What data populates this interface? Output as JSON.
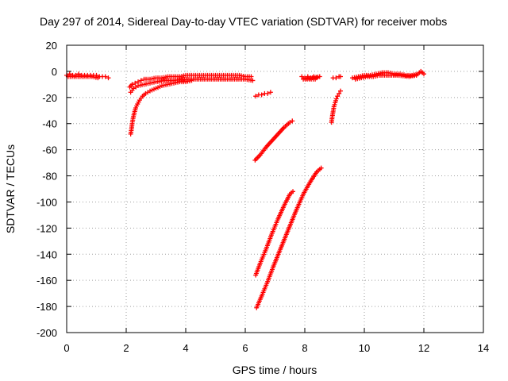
{
  "chart_data": {
    "type": "scatter",
    "title": "Day 297 of 2014, Sidereal Day-to-day VTEC variation (SDTVAR) for receiver mobs",
    "xlabel": "GPS time / hours",
    "ylabel": "SDTVAR / TECUs",
    "xlim": [
      0,
      14
    ],
    "ylim": [
      -200,
      20
    ],
    "xticks": [
      "0",
      "2",
      "4",
      "6",
      "8",
      "10",
      "12",
      "14"
    ],
    "yticks": [
      "20",
      "0",
      "-20",
      "-40",
      "-60",
      "-80",
      "-100",
      "-120",
      "-140",
      "-160",
      "-180",
      "-200"
    ],
    "grid": true,
    "marker": "+",
    "point_color": "#ff0000",
    "series": [
      {
        "points": [
          [
            0.0,
            -3
          ],
          [
            0.1,
            -2
          ],
          [
            0.2,
            -3
          ],
          [
            0.3,
            -3
          ],
          [
            0.4,
            -2
          ],
          [
            0.5,
            -3
          ],
          [
            0.6,
            -3
          ],
          [
            0.7,
            -3
          ],
          [
            0.8,
            -3
          ],
          [
            0.9,
            -3
          ],
          [
            1.0,
            -3
          ],
          [
            1.1,
            -4
          ],
          [
            1.2,
            -4
          ],
          [
            1.3,
            -4
          ],
          [
            1.4,
            -5
          ],
          [
            0.05,
            -4
          ],
          [
            0.25,
            -4
          ],
          [
            0.45,
            -4
          ],
          [
            0.65,
            -4
          ],
          [
            0.85,
            -4
          ],
          [
            1.05,
            -5
          ]
        ]
      },
      {
        "points": [
          [
            2.12,
            -12
          ],
          [
            2.2,
            -10
          ],
          [
            2.3,
            -9
          ],
          [
            2.4,
            -8
          ],
          [
            2.5,
            -7
          ],
          [
            2.6,
            -6
          ],
          [
            2.8,
            -6
          ],
          [
            3.0,
            -5
          ],
          [
            3.2,
            -5
          ],
          [
            3.4,
            -4
          ],
          [
            3.6,
            -4
          ],
          [
            3.8,
            -4
          ],
          [
            4.0,
            -3
          ],
          [
            4.2,
            -3
          ],
          [
            4.4,
            -3
          ],
          [
            4.6,
            -3
          ],
          [
            4.8,
            -3
          ],
          [
            5.0,
            -3
          ],
          [
            5.2,
            -3
          ],
          [
            5.4,
            -3
          ],
          [
            5.6,
            -3
          ],
          [
            5.8,
            -3
          ],
          [
            6.0,
            -4
          ],
          [
            6.2,
            -4
          ],
          [
            2.15,
            -16
          ],
          [
            2.25,
            -13
          ],
          [
            2.4,
            -11
          ],
          [
            2.6,
            -10
          ],
          [
            2.8,
            -9
          ],
          [
            3.0,
            -8
          ],
          [
            3.3,
            -7
          ],
          [
            3.6,
            -7
          ],
          [
            3.9,
            -6
          ],
          [
            4.2,
            -6
          ],
          [
            4.5,
            -6
          ],
          [
            4.8,
            -6
          ],
          [
            5.1,
            -6
          ],
          [
            5.4,
            -6
          ],
          [
            5.7,
            -6
          ],
          [
            6.0,
            -6
          ],
          [
            6.25,
            -7
          ]
        ]
      },
      {
        "points": [
          [
            2.15,
            -48
          ],
          [
            2.18,
            -44
          ],
          [
            2.2,
            -40
          ],
          [
            2.23,
            -36
          ],
          [
            2.27,
            -32
          ],
          [
            2.32,
            -28
          ],
          [
            2.38,
            -25
          ],
          [
            2.45,
            -22
          ],
          [
            2.55,
            -19
          ],
          [
            2.65,
            -17
          ],
          [
            2.8,
            -15
          ],
          [
            3.0,
            -13
          ],
          [
            3.2,
            -11
          ],
          [
            3.4,
            -10
          ],
          [
            3.6,
            -9
          ],
          [
            3.8,
            -8
          ],
          [
            4.0,
            -8
          ],
          [
            4.2,
            -7
          ]
        ]
      },
      {
        "points": [
          [
            6.35,
            -19
          ],
          [
            6.45,
            -18
          ],
          [
            6.55,
            -18
          ],
          [
            6.65,
            -17
          ],
          [
            6.75,
            -17
          ],
          [
            6.85,
            -16
          ]
        ]
      },
      {
        "points": [
          [
            6.33,
            -68
          ],
          [
            6.5,
            -64
          ],
          [
            6.7,
            -58
          ],
          [
            6.9,
            -53
          ],
          [
            7.1,
            -48
          ],
          [
            7.3,
            -43
          ],
          [
            7.5,
            -39
          ],
          [
            7.58,
            -38
          ]
        ]
      },
      {
        "points": [
          [
            6.35,
            -156
          ],
          [
            6.5,
            -147
          ],
          [
            6.7,
            -136
          ],
          [
            6.9,
            -124
          ],
          [
            7.1,
            -113
          ],
          [
            7.3,
            -103
          ],
          [
            7.5,
            -94
          ],
          [
            7.6,
            -92
          ]
        ]
      },
      {
        "points": [
          [
            6.38,
            -181
          ],
          [
            6.55,
            -172
          ],
          [
            6.75,
            -161
          ],
          [
            6.95,
            -149
          ],
          [
            7.2,
            -135
          ],
          [
            7.45,
            -121
          ],
          [
            7.7,
            -107
          ],
          [
            7.95,
            -94
          ],
          [
            8.2,
            -84
          ],
          [
            8.4,
            -77
          ],
          [
            8.55,
            -74
          ]
        ]
      },
      {
        "points": [
          [
            7.9,
            -4
          ],
          [
            8.0,
            -5
          ],
          [
            8.1,
            -4
          ],
          [
            8.2,
            -5
          ],
          [
            8.3,
            -4
          ],
          [
            8.4,
            -5
          ],
          [
            8.5,
            -4
          ],
          [
            7.95,
            -6
          ],
          [
            8.15,
            -6
          ],
          [
            8.35,
            -6
          ]
        ]
      },
      {
        "points": [
          [
            8.95,
            -5
          ],
          [
            9.05,
            -5
          ],
          [
            9.15,
            -4
          ],
          [
            9.2,
            -4
          ]
        ]
      },
      {
        "points": [
          [
            8.9,
            -39
          ],
          [
            8.92,
            -35
          ],
          [
            8.95,
            -31
          ],
          [
            8.98,
            -27
          ],
          [
            9.02,
            -24
          ],
          [
            9.06,
            -21
          ],
          [
            9.1,
            -19
          ],
          [
            9.15,
            -17
          ],
          [
            9.2,
            -15
          ]
        ]
      },
      {
        "points": [
          [
            9.6,
            -5
          ],
          [
            9.8,
            -4
          ],
          [
            10.0,
            -3
          ],
          [
            10.2,
            -3
          ],
          [
            10.4,
            -2
          ],
          [
            10.6,
            -1
          ],
          [
            10.8,
            -1
          ],
          [
            11.0,
            -2
          ],
          [
            11.2,
            -2
          ],
          [
            11.4,
            -3
          ],
          [
            11.6,
            -3
          ],
          [
            11.8,
            -2
          ],
          [
            11.9,
            0
          ],
          [
            12.0,
            -2
          ],
          [
            9.7,
            -6
          ],
          [
            9.9,
            -5
          ],
          [
            10.1,
            -4
          ],
          [
            10.3,
            -4
          ],
          [
            10.5,
            -3
          ],
          [
            11.1,
            -3
          ],
          [
            11.5,
            -4
          ],
          [
            11.75,
            -3
          ]
        ]
      }
    ]
  }
}
